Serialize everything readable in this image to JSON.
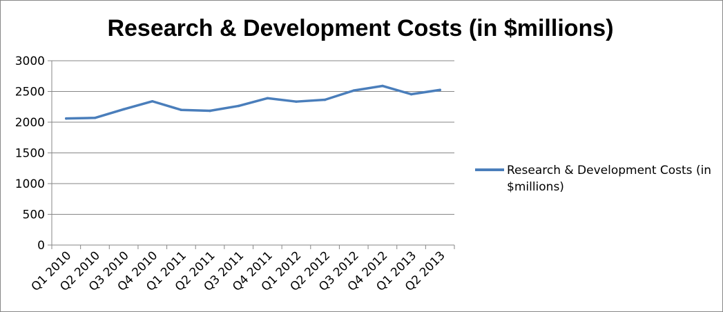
{
  "chart_data": {
    "type": "line",
    "title": "Research & Development Costs (in $millions)",
    "xlabel": "",
    "ylabel": "",
    "categories": [
      "Q1 2010",
      "Q2 2010",
      "Q3 2010",
      "Q4 2010",
      "Q1 2011",
      "Q2 2011",
      "Q3 2011",
      "Q4 2011",
      "Q1 2012",
      "Q2 2012",
      "Q3 2012",
      "Q4 2012",
      "Q1 2013",
      "Q2 2013"
    ],
    "series": [
      {
        "name": "Research & Development Costs (in $millions)",
        "legend_lines": [
          "Research & Development Costs (in",
          "$millions)"
        ],
        "color": "#4a7ebb",
        "values": [
          2060,
          2070,
          2210,
          2340,
          2200,
          2185,
          2265,
          2390,
          2335,
          2365,
          2515,
          2590,
          2455,
          2525
        ]
      }
    ],
    "ylim": [
      0,
      3000
    ],
    "yticks": [
      "0",
      "500",
      "1000",
      "1500",
      "2000",
      "2500",
      "3000"
    ],
    "grid": true,
    "legend_position": "right"
  }
}
